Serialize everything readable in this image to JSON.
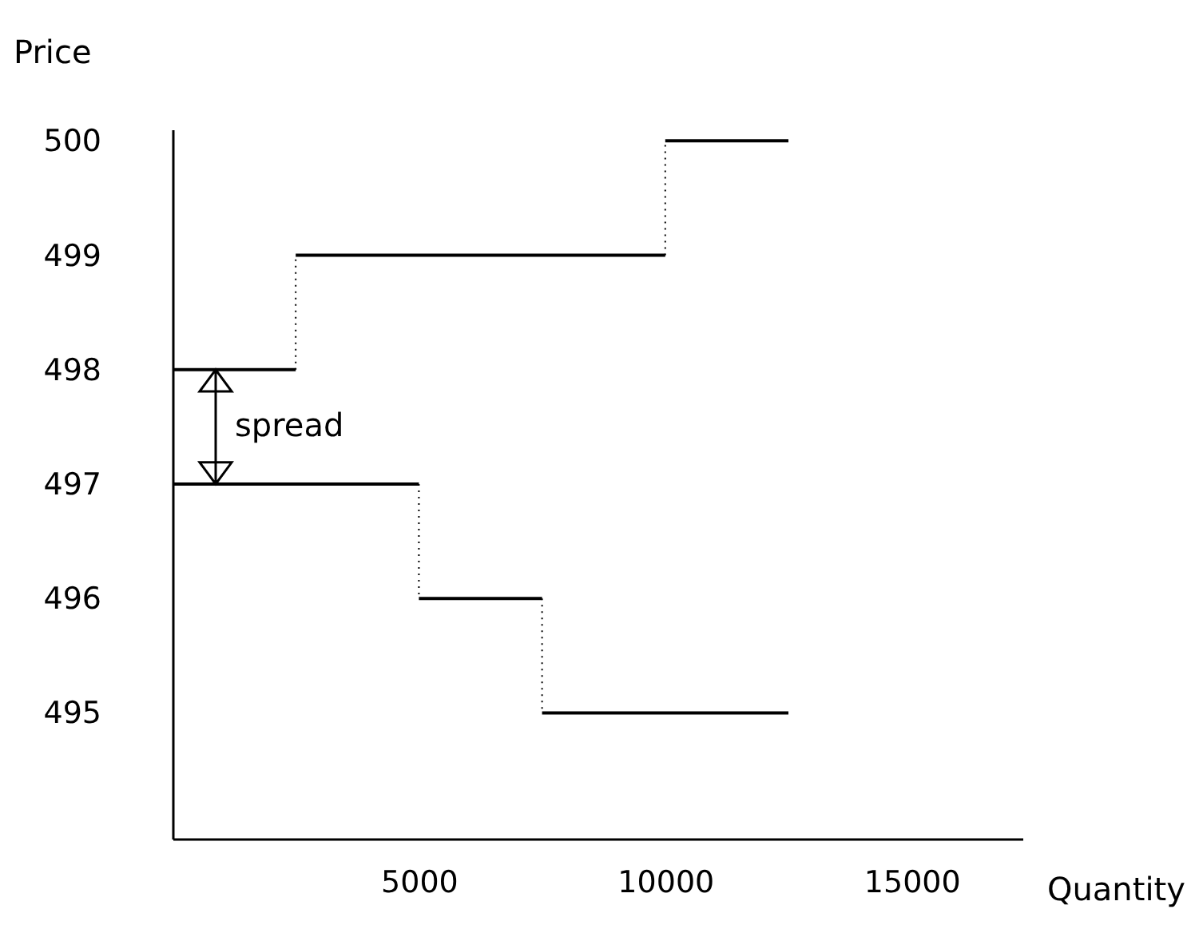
{
  "chart_data": {
    "type": "step",
    "xlabel": "Quantity",
    "ylabel": "Price",
    "series": [
      {
        "color": "#000000",
        "x": [
          0,
          2500,
          10000,
          12500
        ],
        "values": [
          498,
          499,
          500,
          500
        ]
      },
      {
        "color": "#000000",
        "x": [
          0,
          5000,
          7500,
          12500
        ],
        "values": [
          497,
          496,
          495,
          495
        ]
      }
    ],
    "xlim": [
      0,
      17250
    ],
    "xticks": [
      5000,
      10000,
      15000
    ],
    "ylim": [
      493.9,
      500.1
    ],
    "yticks": [
      495,
      496,
      497,
      498,
      499,
      500
    ],
    "grid": false,
    "annotations": [
      "spread"
    ]
  }
}
